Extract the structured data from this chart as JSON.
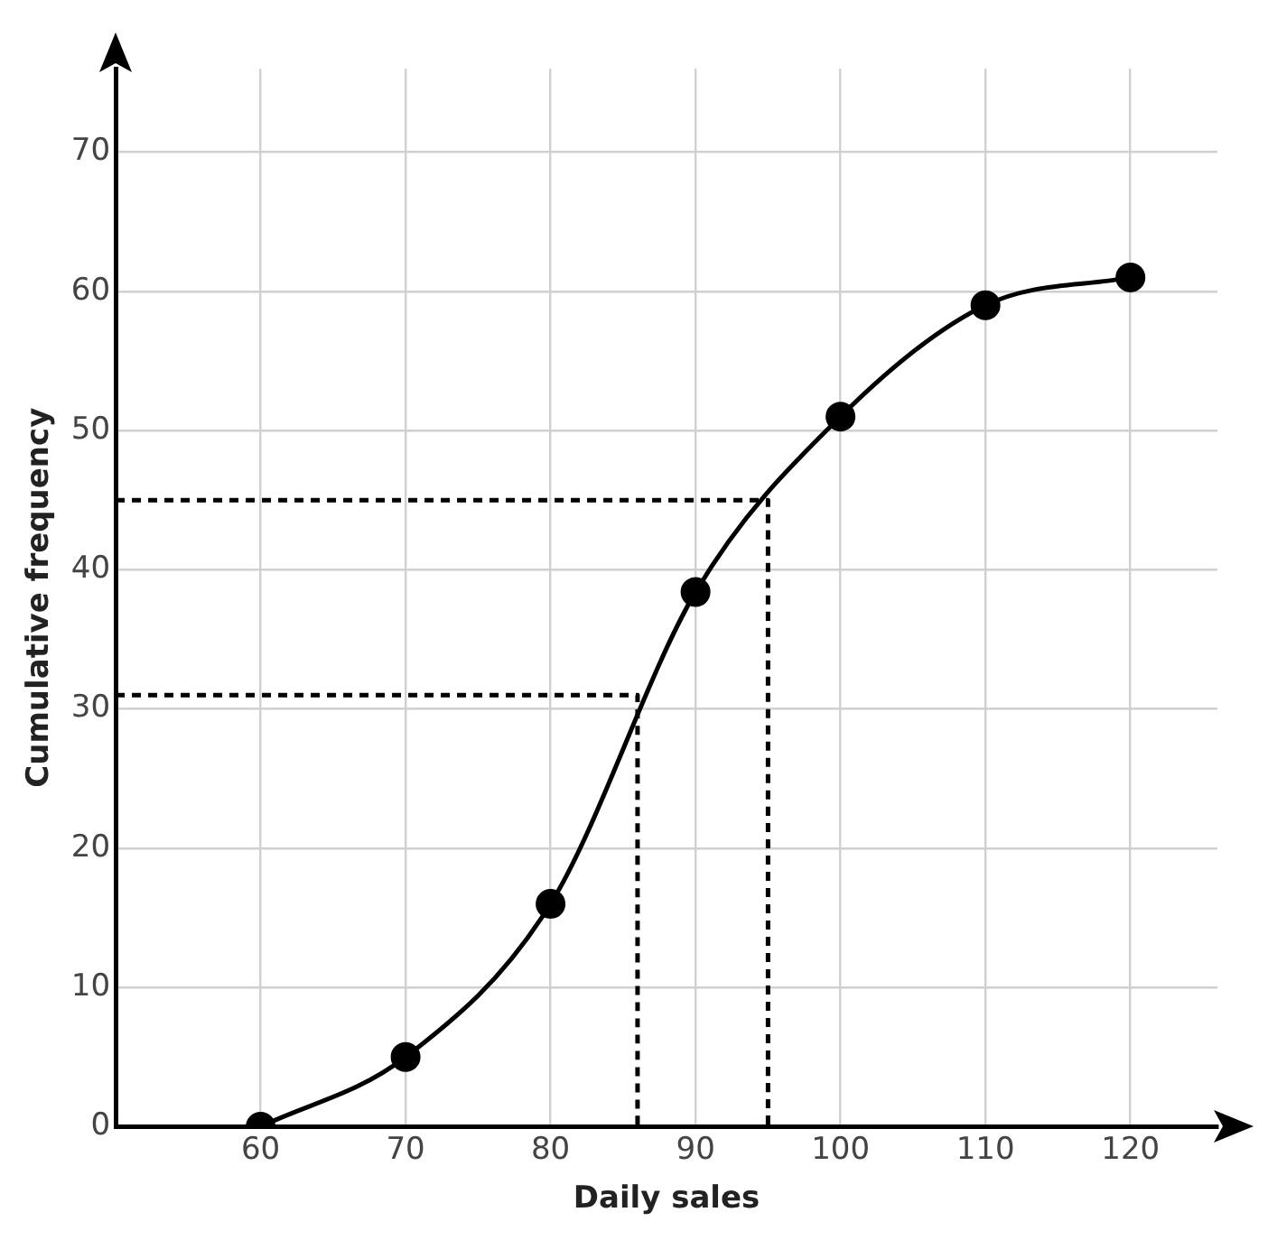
{
  "chart_data": {
    "type": "line",
    "xlabel": "Daily sales",
    "ylabel": "Cumulative frequency",
    "xlim": [
      50,
      126
    ],
    "ylim": [
      0,
      76
    ],
    "xticks": [
      60,
      70,
      80,
      90,
      100,
      110,
      120
    ],
    "yticks": [
      0,
      10,
      20,
      30,
      40,
      50,
      60,
      70
    ],
    "grid": true,
    "marker": "circle",
    "line_style": "solid",
    "series": [
      {
        "color": "#000000",
        "x": [
          60,
          70,
          80,
          90,
          100,
          110,
          120
        ],
        "values": [
          0,
          5,
          16,
          38.4,
          51,
          59,
          61
        ]
      },
      {
        "color": "#000000",
        "x": [
          50,
          86,
          86
        ],
        "values": [
          31,
          31,
          0
        ],
        "line_style": "dashed",
        "marker": "none"
      },
      {
        "color": "#000000",
        "x": [
          50,
          95,
          95
        ],
        "values": [
          45,
          45,
          0
        ],
        "line_style": "dashed",
        "marker": "none"
      }
    ]
  }
}
